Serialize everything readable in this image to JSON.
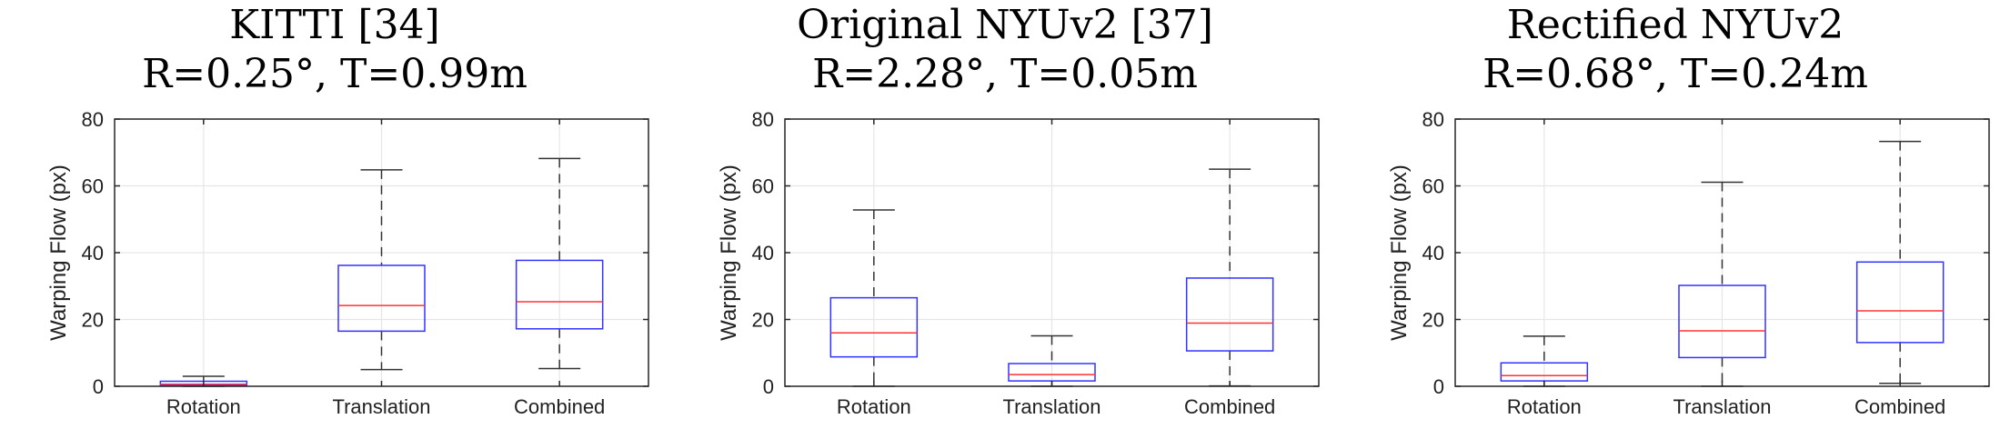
{
  "chart_data": [
    {
      "type": "box",
      "title": "KITTI [34]",
      "subtitle": "R=0.25°, T=0.99m",
      "ylabel": "Warping Flow (px)",
      "xlabel": "",
      "ylim": [
        0,
        80
      ],
      "yticks": [
        0,
        20,
        40,
        60,
        80
      ],
      "grid": true,
      "categories": [
        "Rotation",
        "Translation",
        "Combined"
      ],
      "boxes": [
        {
          "whisker_low": 0,
          "q1": 0.2,
          "median": 0.6,
          "q3": 1.5,
          "whisker_high": 3
        },
        {
          "whisker_low": 5,
          "q1": 16.5,
          "median": 24.2,
          "q3": 36.2,
          "whisker_high": 64.8
        },
        {
          "whisker_low": 5.3,
          "q1": 17.2,
          "median": 25.3,
          "q3": 37.7,
          "whisker_high": 68.2
        }
      ]
    },
    {
      "type": "box",
      "title": "Original NYUv2 [37]",
      "subtitle": "R=2.28°, T=0.05m",
      "ylabel": "Warping Flow (px)",
      "xlabel": "",
      "ylim": [
        0,
        80
      ],
      "yticks": [
        0,
        20,
        40,
        60,
        80
      ],
      "grid": true,
      "categories": [
        "Rotation",
        "Translation",
        "Combined"
      ],
      "boxes": [
        {
          "whisker_low": 0,
          "q1": 8.8,
          "median": 16,
          "q3": 26.5,
          "whisker_high": 52.8
        },
        {
          "whisker_low": 0,
          "q1": 1.6,
          "median": 3.5,
          "q3": 6.8,
          "whisker_high": 15.1
        },
        {
          "whisker_low": 0.1,
          "q1": 10.6,
          "median": 18.9,
          "q3": 32.4,
          "whisker_high": 65
        }
      ]
    },
    {
      "type": "box",
      "title": "Rectified NYUv2",
      "subtitle": "R=0.68°, T=0.24m",
      "ylabel": "Warping Flow (px)",
      "xlabel": "",
      "ylim": [
        0,
        80
      ],
      "yticks": [
        0,
        20,
        40,
        60,
        80
      ],
      "grid": true,
      "categories": [
        "Rotation",
        "Translation",
        "Combined"
      ],
      "boxes": [
        {
          "whisker_low": 0,
          "q1": 1.6,
          "median": 3.2,
          "q3": 7,
          "whisker_high": 15
        },
        {
          "whisker_low": 0,
          "q1": 8.6,
          "median": 16.6,
          "q3": 30.2,
          "whisker_high": 61.1
        },
        {
          "whisker_low": 0.9,
          "q1": 13.1,
          "median": 22.6,
          "q3": 37.2,
          "whisker_high": 73.3
        }
      ]
    }
  ],
  "colors": {
    "box": "#3333ff",
    "median": "#ff3333",
    "whisker": "#333333",
    "grid": "#e6e6e6",
    "axes": "#262626"
  }
}
